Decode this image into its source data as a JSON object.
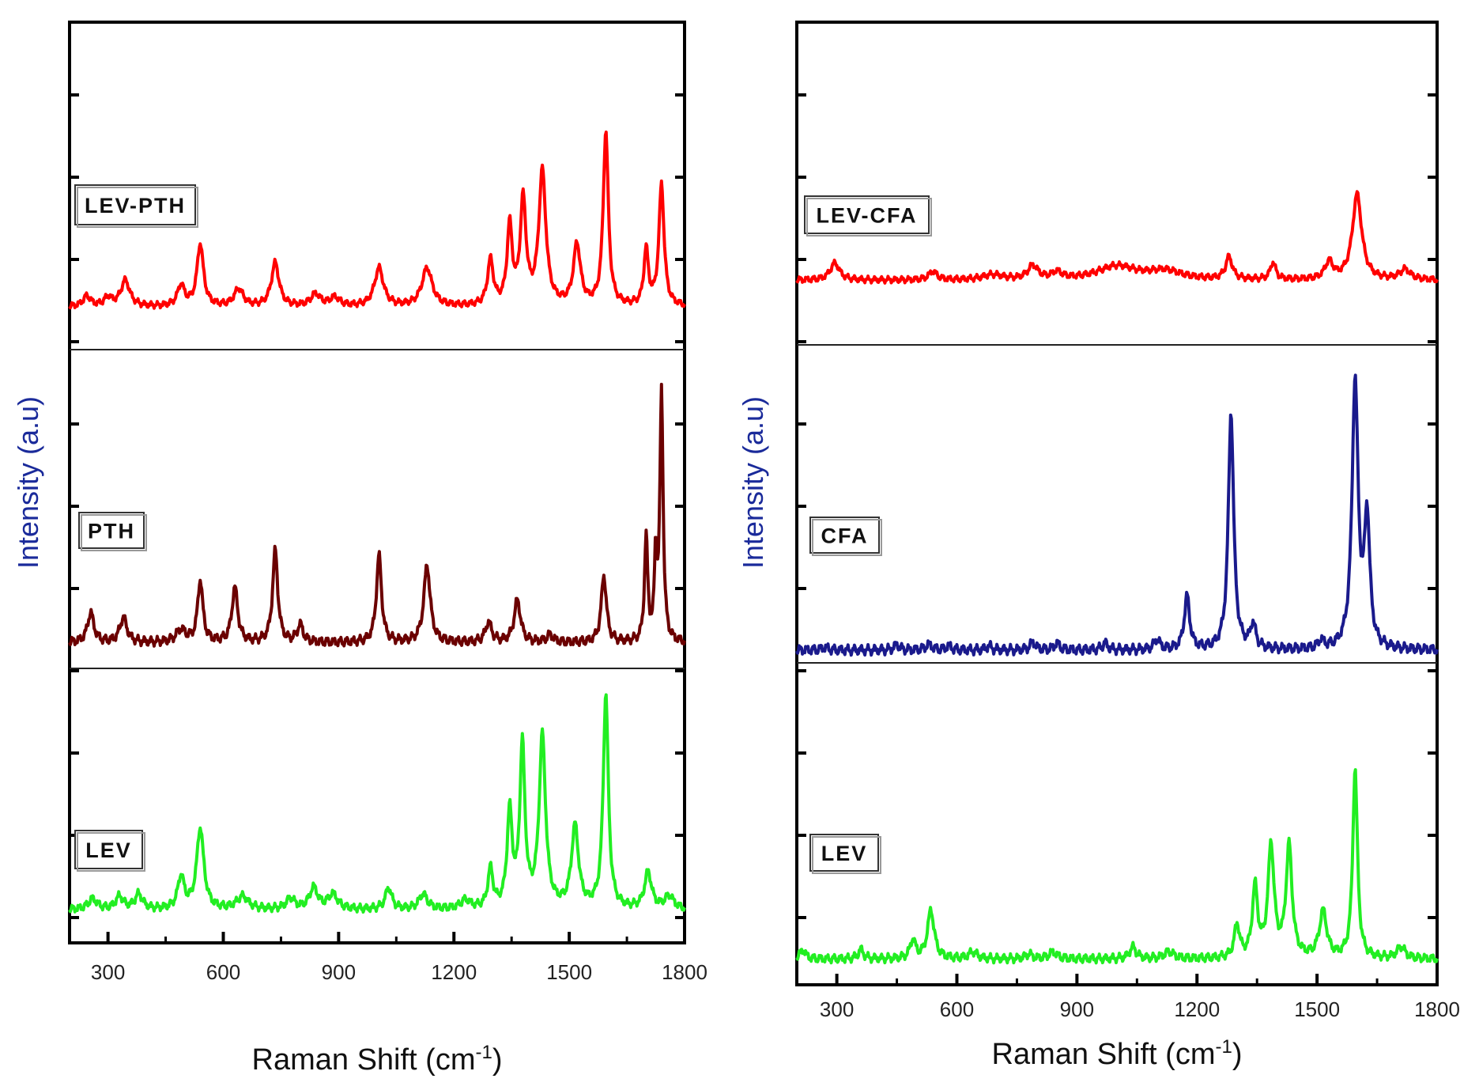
{
  "chart_data": [
    {
      "type": "line",
      "panel": "left",
      "xlabel": "Raman Shift (cm",
      "xlabel_sup": "-1",
      "xlabel_end": ")",
      "ylabel": "Intensity (a.u)",
      "xlim": [
        200,
        1800
      ],
      "xticks": [
        "300",
        "600",
        "900",
        "1200",
        "1500",
        "1800"
      ],
      "series": [
        {
          "name": "LEV-PTH",
          "color": "#ff0000",
          "baseline": 0.15,
          "peaks": [
            [
              245,
              0.06,
              12
            ],
            [
              300,
              0.05,
              12
            ],
            [
              345,
              0.15,
              14
            ],
            [
              490,
              0.12,
              11
            ],
            [
              540,
              0.36,
              10
            ],
            [
              640,
              0.1,
              14
            ],
            [
              735,
              0.25,
              12
            ],
            [
              840,
              0.07,
              15
            ],
            [
              890,
              0.05,
              15
            ],
            [
              1005,
              0.22,
              14
            ],
            [
              1130,
              0.22,
              16
            ],
            [
              1295,
              0.26,
              9
            ],
            [
              1345,
              0.45,
              8
            ],
            [
              1380,
              0.6,
              9
            ],
            [
              1430,
              0.77,
              11
            ],
            [
              1520,
              0.35,
              11
            ],
            [
              1595,
              1.0,
              8
            ],
            [
              1700,
              0.32,
              7
            ],
            [
              1740,
              0.7,
              8
            ]
          ]
        },
        {
          "name": "PTH",
          "color": "#6b0000",
          "baseline": 0.05,
          "peaks": [
            [
              255,
              0.12,
              10
            ],
            [
              340,
              0.1,
              11
            ],
            [
              490,
              0.05,
              15
            ],
            [
              540,
              0.25,
              8
            ],
            [
              630,
              0.22,
              9
            ],
            [
              735,
              0.37,
              8
            ],
            [
              800,
              0.07,
              9
            ],
            [
              1005,
              0.35,
              8
            ],
            [
              1130,
              0.31,
              10
            ],
            [
              1290,
              0.08,
              10
            ],
            [
              1365,
              0.17,
              10
            ],
            [
              1450,
              0.03,
              10
            ],
            [
              1590,
              0.27,
              8
            ],
            [
              1700,
              0.42,
              5
            ],
            [
              1725,
              0.33,
              4
            ],
            [
              1740,
              1.0,
              5
            ]
          ]
        },
        {
          "name": "LEV",
          "color": "#22ee22",
          "baseline": 0.06,
          "peaks": [
            [
              260,
              0.05,
              14
            ],
            [
              330,
              0.06,
              12
            ],
            [
              380,
              0.07,
              12
            ],
            [
              490,
              0.15,
              10
            ],
            [
              540,
              0.38,
              11
            ],
            [
              650,
              0.06,
              18
            ],
            [
              775,
              0.05,
              13
            ],
            [
              835,
              0.1,
              13
            ],
            [
              885,
              0.07,
              15
            ],
            [
              1030,
              0.1,
              10
            ],
            [
              1120,
              0.07,
              13
            ],
            [
              1230,
              0.04,
              15
            ],
            [
              1295,
              0.18,
              8
            ],
            [
              1345,
              0.44,
              8
            ],
            [
              1378,
              0.75,
              8
            ],
            [
              1430,
              0.8,
              10
            ],
            [
              1515,
              0.38,
              11
            ],
            [
              1595,
              1.0,
              8
            ],
            [
              1705,
              0.17,
              11
            ],
            [
              1760,
              0.06,
              14
            ]
          ]
        }
      ],
      "labels": [
        "LEV-PTH",
        "PTH",
        "LEV"
      ]
    },
    {
      "type": "line",
      "panel": "right",
      "xlabel": "Raman Shift (cm",
      "xlabel_sup": "-1",
      "xlabel_end": ")",
      "ylabel": "Intensity (a.u)",
      "xlim": [
        200,
        1800
      ],
      "xticks": [
        "300",
        "600",
        "900",
        "1200",
        "1500",
        "1800"
      ],
      "series": [
        {
          "name": "LEV-CFA",
          "color": "#ff0000",
          "baseline": 0.2,
          "peaks": [
            [
              295,
              0.1,
              14
            ],
            [
              540,
              0.05,
              12
            ],
            [
              690,
              0.03,
              30
            ],
            [
              790,
              0.08,
              15
            ],
            [
              850,
              0.04,
              15
            ],
            [
              1000,
              0.08,
              60
            ],
            [
              1120,
              0.05,
              50
            ],
            [
              1280,
              0.13,
              10
            ],
            [
              1390,
              0.1,
              8
            ],
            [
              1530,
              0.1,
              12
            ],
            [
              1600,
              0.5,
              14
            ],
            [
              1720,
              0.06,
              16
            ]
          ]
        },
        {
          "name": "CFA",
          "color": "#1a1a8c",
          "baseline": 0.01,
          "peaks": [
            [
              270,
              0.01,
              10
            ],
            [
              450,
              0.02,
              8
            ],
            [
              530,
              0.02,
              10
            ],
            [
              580,
              0.015,
              8
            ],
            [
              680,
              0.015,
              8
            ],
            [
              790,
              0.03,
              8
            ],
            [
              850,
              0.025,
              8
            ],
            [
              970,
              0.025,
              8
            ],
            [
              1100,
              0.04,
              8
            ],
            [
              1175,
              0.2,
              8
            ],
            [
              1285,
              0.89,
              8
            ],
            [
              1340,
              0.09,
              8
            ],
            [
              1510,
              0.03,
              8
            ],
            [
              1595,
              1.0,
              9
            ],
            [
              1625,
              0.48,
              8
            ]
          ]
        },
        {
          "name": "LEV",
          "color": "#22ee22",
          "baseline": 0.06,
          "peaks": [
            [
              215,
              0.04,
              8
            ],
            [
              360,
              0.04,
              8
            ],
            [
              490,
              0.08,
              8
            ],
            [
              535,
              0.21,
              10
            ],
            [
              640,
              0.03,
              12
            ],
            [
              780,
              0.02,
              10
            ],
            [
              840,
              0.03,
              12
            ],
            [
              1040,
              0.05,
              10
            ],
            [
              1130,
              0.03,
              14
            ],
            [
              1300,
              0.14,
              8
            ],
            [
              1345,
              0.3,
              8
            ],
            [
              1385,
              0.48,
              9
            ],
            [
              1430,
              0.48,
              9
            ],
            [
              1515,
              0.2,
              11
            ],
            [
              1595,
              0.82,
              7
            ],
            [
              1710,
              0.05,
              12
            ]
          ]
        }
      ],
      "labels": [
        "LEV-CFA",
        "CFA",
        "LEV"
      ]
    }
  ]
}
